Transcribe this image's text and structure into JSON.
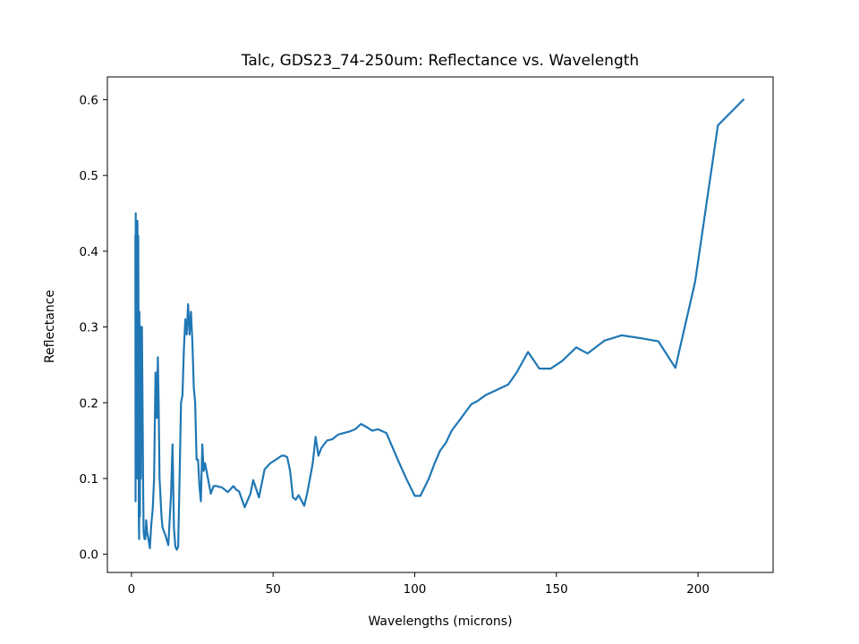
{
  "chart_data": {
    "type": "line",
    "title": "Talc, GDS23_74-250um: Reflectance vs. Wavelength",
    "xlabel": "Wavelengths (microns)",
    "ylabel": "Reflectance",
    "xlim": [
      -8.5,
      226.5
    ],
    "ylim": [
      -0.024,
      0.63
    ],
    "xticks": [
      0,
      50,
      100,
      150,
      200
    ],
    "xtick_labels": [
      "0",
      "50",
      "100",
      "150",
      "200"
    ],
    "yticks": [
      0.0,
      0.1,
      0.2,
      0.3,
      0.4,
      0.5,
      0.6
    ],
    "ytick_labels": [
      "0.0",
      "0.1",
      "0.2",
      "0.3",
      "0.4",
      "0.5",
      "0.6"
    ],
    "grid": false,
    "legend": false,
    "series": [
      {
        "color": "#1f77b4",
        "x": [
          1.4,
          1.45,
          1.5,
          1.6,
          1.7,
          1.8,
          1.9,
          2.0,
          2.1,
          2.2,
          2.3,
          2.4,
          2.5,
          2.6,
          2.7,
          2.8,
          2.9,
          3.0,
          3.1,
          3.2,
          3.3,
          3.4,
          3.5,
          3.7,
          3.9,
          4.1,
          4.3,
          4.6,
          4.9,
          5.2,
          5.5,
          6.0,
          6.5,
          7.0,
          7.5,
          8.0,
          8.5,
          9.0,
          9.3,
          9.6,
          9.9,
          10.2,
          10.6,
          11.0,
          12.0,
          13.0,
          14.0,
          14.5,
          15.0,
          15.5,
          16.0,
          16.5,
          17.0,
          17.5,
          18.0,
          18.5,
          19.0,
          19.5,
          20.0,
          20.5,
          21.0,
          21.5,
          22.0,
          22.5,
          23.0,
          23.5,
          24.0,
          24.5,
          25.0,
          25.5,
          26.0,
          27.0,
          28.0,
          29.0,
          30.0,
          32.0,
          34.0,
          36.0,
          37.0,
          38.0,
          40.0,
          42.0,
          43.0,
          45.0,
          47.0,
          49.0,
          51.0,
          53.0,
          54.0,
          55.0,
          56.0,
          57.0,
          58.0,
          59.0,
          61.0,
          62.0,
          63.0,
          64.0,
          65.0,
          66.0,
          67.0,
          69.0,
          71.0,
          73.0,
          75.0,
          77.0,
          79.0,
          81.0,
          83.0,
          85.0,
          87.0,
          90.0,
          94.0,
          97.0,
          100.0,
          102.0,
          105.0,
          107.0,
          109.0,
          111.0,
          113.0,
          117.0,
          120.0,
          122.0,
          125.0,
          129.0,
          133.0,
          136.0,
          140.0,
          144.0,
          148.0,
          152.0,
          157.0,
          161.0,
          167.0,
          173.0,
          180.0,
          186.0,
          192.0,
          199.0,
          207.0,
          216.0
        ],
        "y": [
          0.42,
          0.07,
          0.45,
          0.2,
          0.1,
          0.38,
          0.3,
          0.15,
          0.44,
          0.26,
          0.1,
          0.42,
          0.3,
          0.05,
          0.02,
          0.32,
          0.2,
          0.05,
          0.28,
          0.25,
          0.1,
          0.3,
          0.22,
          0.3,
          0.2,
          0.1,
          0.03,
          0.02,
          0.02,
          0.045,
          0.03,
          0.02,
          0.008,
          0.04,
          0.06,
          0.1,
          0.24,
          0.18,
          0.26,
          0.2,
          0.1,
          0.08,
          0.05,
          0.035,
          0.025,
          0.012,
          0.08,
          0.145,
          0.035,
          0.01,
          0.006,
          0.01,
          0.1,
          0.2,
          0.21,
          0.27,
          0.31,
          0.29,
          0.33,
          0.29,
          0.32,
          0.28,
          0.22,
          0.2,
          0.125,
          0.125,
          0.09,
          0.07,
          0.145,
          0.11,
          0.12,
          0.1,
          0.08,
          0.09,
          0.09,
          0.088,
          0.082,
          0.09,
          0.085,
          0.083,
          0.062,
          0.08,
          0.098,
          0.075,
          0.112,
          0.12,
          0.125,
          0.13,
          0.13,
          0.128,
          0.11,
          0.075,
          0.072,
          0.078,
          0.064,
          0.08,
          0.1,
          0.12,
          0.155,
          0.13,
          0.14,
          0.15,
          0.152,
          0.158,
          0.16,
          0.162,
          0.165,
          0.172,
          0.168,
          0.163,
          0.165,
          0.16,
          0.125,
          0.1,
          0.077,
          0.077,
          0.1,
          0.12,
          0.137,
          0.147,
          0.163,
          0.183,
          0.198,
          0.202,
          0.21,
          0.217,
          0.224,
          0.24,
          0.267,
          0.245,
          0.245,
          0.255,
          0.273,
          0.265,
          0.282,
          0.289,
          0.285,
          0.281,
          0.246,
          0.36,
          0.566,
          0.6
        ]
      }
    ]
  }
}
